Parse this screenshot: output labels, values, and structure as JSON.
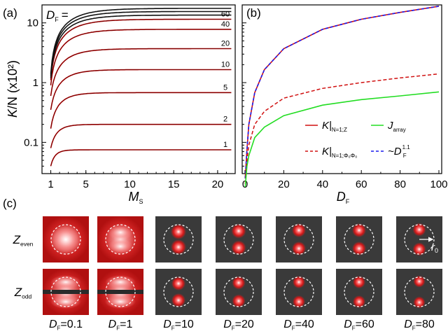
{
  "panel_a": {
    "letter": "(a)",
    "df_label": "D",
    "df_sub": "F",
    "df_eq": "=",
    "ylabel_K": "K",
    "ylabel_rest": "/N (x10²)",
    "xlabel": "M",
    "xlabel_sub": "S",
    "x_ticks": [
      "1",
      "5",
      "10",
      "15",
      "20"
    ],
    "y_ticks": [
      "10",
      "1",
      "0.1"
    ]
  },
  "panel_b": {
    "letter": "(b)",
    "xlabel": "D",
    "xlabel_sub": "F",
    "x_ticks": [
      "0",
      "20",
      "40",
      "60",
      "80",
      "100"
    ],
    "legend": [
      {
        "main": "K|",
        "sub": "N=1;Z",
        "color": "#d01010",
        "dash": "solid"
      },
      {
        "main": "J",
        "sub": "array",
        "color": "#22dd22",
        "dash": "solid"
      },
      {
        "main": "K|",
        "sub": "N=1;Φ₀Φ₀",
        "color": "#d01010",
        "dash": "dashed"
      },
      {
        "main": "~D",
        "sub": "F",
        "sup": "1.1",
        "color": "#1a1aee",
        "dash": "dashed"
      }
    ]
  },
  "panel_c": {
    "letter": "(c)",
    "row_labels": [
      {
        "main": "Z",
        "sub": "even"
      },
      {
        "main": "Z",
        "sub": "odd"
      }
    ],
    "col_labels": [
      {
        "main": "D",
        "sub": "F",
        "val": "=0.1"
      },
      {
        "main": "D",
        "sub": "F",
        "val": "=1"
      },
      {
        "main": "D",
        "sub": "F",
        "val": "=10"
      },
      {
        "main": "D",
        "sub": "F",
        "val": "=20"
      },
      {
        "main": "D",
        "sub": "F",
        "val": "=40"
      },
      {
        "main": "D",
        "sub": "F",
        "val": "=60"
      },
      {
        "main": "D",
        "sub": "F",
        "val": "=80"
      }
    ],
    "r0_label": "r",
    "r0_sub": "0"
  },
  "chart_data": [
    {
      "type": "line",
      "panel": "a",
      "title": "",
      "xlabel": "M_S",
      "ylabel": "K/N (x10²)",
      "xlim": [
        0,
        22
      ],
      "ylim": [
        0.03,
        20
      ],
      "yscale": "log",
      "annotation": "D_F =",
      "series": [
        {
          "name": "1",
          "plateau": 0.075,
          "start": 0.04
        },
        {
          "name": "2",
          "plateau": 0.2,
          "start": 0.08
        },
        {
          "name": "5",
          "plateau": 0.68,
          "start": 0.17
        },
        {
          "name": "10",
          "plateau": 1.65,
          "start": 0.35
        },
        {
          "name": "20",
          "plateau": 3.7,
          "start": 0.6
        },
        {
          "name": "40",
          "plateau": 7.8,
          "start": 0.9
        },
        {
          "name": "60",
          "plateau": 11.5,
          "start": 1.1
        },
        {
          "name": "",
          "plateau": 13.5,
          "start": 1.2
        },
        {
          "name": "",
          "plateau": 15.5,
          "start": 1.3
        },
        {
          "name": "",
          "plateau": 17.5,
          "start": 1.4
        }
      ]
    },
    {
      "type": "line",
      "panel": "b",
      "xlabel": "D_F",
      "ylabel": "K/N (x10²)",
      "xlim": [
        0,
        100
      ],
      "yscale": "log",
      "ylim": [
        0.03,
        20
      ],
      "series": [
        {
          "name": "K|N=1;Z",
          "x": [
            0.1,
            1,
            2,
            5,
            10,
            20,
            40,
            60,
            80,
            100
          ],
          "y": [
            0.025,
            0.075,
            0.2,
            0.68,
            1.65,
            3.7,
            7.8,
            11.5,
            15.0,
            19.0
          ]
        },
        {
          "name": "~D_F^1.1",
          "x": [
            0.1,
            1,
            2,
            5,
            10,
            20,
            40,
            60,
            80,
            100
          ],
          "y": [
            0.025,
            0.075,
            0.2,
            0.68,
            1.65,
            3.7,
            7.8,
            11.5,
            15.0,
            19.0
          ]
        },
        {
          "name": "K|N=1;Φ₀Φ₀",
          "x": [
            0.1,
            1,
            2,
            5,
            10,
            20,
            40,
            60,
            80,
            100
          ],
          "y": [
            0.02,
            0.05,
            0.09,
            0.2,
            0.33,
            0.55,
            0.8,
            1.0,
            1.2,
            1.4
          ]
        },
        {
          "name": "J_array",
          "x": [
            0.1,
            1,
            2,
            5,
            10,
            20,
            40,
            60,
            80,
            100
          ],
          "y": [
            0.018,
            0.04,
            0.06,
            0.12,
            0.18,
            0.28,
            0.42,
            0.52,
            0.6,
            0.7
          ]
        }
      ]
    }
  ]
}
